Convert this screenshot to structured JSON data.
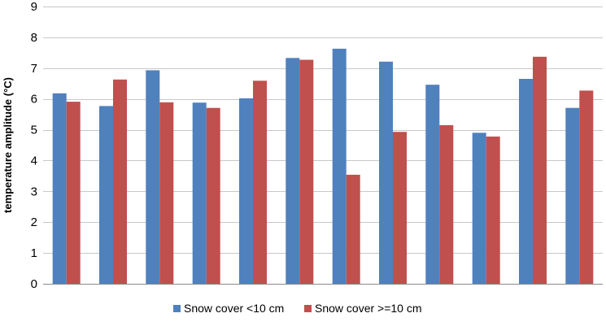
{
  "chart_data": {
    "type": "bar",
    "title": "",
    "xlabel": "",
    "ylabel": "temperature amplitude (°C)",
    "ylim": [
      0,
      9
    ],
    "yticks": [
      0,
      1,
      2,
      3,
      4,
      5,
      6,
      7,
      8,
      9
    ],
    "grid": true,
    "legend_position": "bottom",
    "category_count": 12,
    "series": [
      {
        "name": "Snow cover <10 cm",
        "color": "#4f81bd",
        "values": [
          6.18,
          5.77,
          6.93,
          5.88,
          6.02,
          7.33,
          7.63,
          7.21,
          6.46,
          4.9,
          6.65,
          5.71
        ]
      },
      {
        "name": "Snow cover >=10 cm",
        "color": "#c0504d",
        "values": [
          5.91,
          6.63,
          5.89,
          5.71,
          6.59,
          7.27,
          3.54,
          4.93,
          5.15,
          4.78,
          7.37,
          6.27
        ]
      }
    ]
  }
}
